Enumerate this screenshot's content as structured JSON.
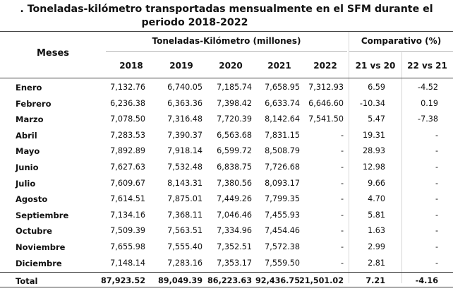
{
  "title": {
    "line1": ". Toneladas-kilómetro transportadas mensualmente en el SFM durante el",
    "line2": "periodo 2018-2022"
  },
  "headers": {
    "months": "Meses",
    "group_main": "Toneladas-Kilómetro (millones)",
    "group_cmp": "Comparativo (%)",
    "years": [
      "2018",
      "2019",
      "2020",
      "2021",
      "2022"
    ],
    "cmp": [
      "21 vs 20",
      "22 vs 21"
    ]
  },
  "rows": [
    {
      "month": "Enero",
      "values": [
        "7,132.76",
        "6,740.05",
        "7,185.74",
        "7,658.95",
        "7,312.93"
      ],
      "cmp": [
        "6.59",
        "-4.52"
      ]
    },
    {
      "month": "Febrero",
      "values": [
        "6,236.38",
        "6,363.36",
        "7,398.42",
        "6,633.74",
        "6,646.60"
      ],
      "cmp": [
        "-10.34",
        "0.19"
      ]
    },
    {
      "month": "Marzo",
      "values": [
        "7,078.50",
        "7,316.48",
        "7,720.39",
        "8,142.64",
        "7,541.50"
      ],
      "cmp": [
        "5.47",
        "-7.38"
      ]
    },
    {
      "month": "Abril",
      "values": [
        "7,283.53",
        "7,390.37",
        "6,563.68",
        "7,831.15",
        "-"
      ],
      "cmp": [
        "19.31",
        "-"
      ]
    },
    {
      "month": "Mayo",
      "values": [
        "7,892.89",
        "7,918.14",
        "6,599.72",
        "8,508.79",
        "-"
      ],
      "cmp": [
        "28.93",
        "-"
      ]
    },
    {
      "month": "Junio",
      "values": [
        "7,627.63",
        "7,532.48",
        "6,838.75",
        "7,726.68",
        "-"
      ],
      "cmp": [
        "12.98",
        "-"
      ]
    },
    {
      "month": "Julio",
      "values": [
        "7,609.67",
        "8,143.31",
        "7,380.56",
        "8,093.17",
        "-"
      ],
      "cmp": [
        "9.66",
        "-"
      ]
    },
    {
      "month": "Agosto",
      "values": [
        "7,614.51",
        "7,875.01",
        "7,449.26",
        "7,799.35",
        "-"
      ],
      "cmp": [
        "4.70",
        "-"
      ]
    },
    {
      "month": "Septiembre",
      "values": [
        "7,134.16",
        "7,368.11",
        "7,046.46",
        "7,455.93",
        "-"
      ],
      "cmp": [
        "5.81",
        "-"
      ]
    },
    {
      "month": "Octubre",
      "values": [
        "7,509.39",
        "7,563.51",
        "7,334.96",
        "7,454.46",
        "-"
      ],
      "cmp": [
        "1.63",
        "-"
      ]
    },
    {
      "month": "Noviembre",
      "values": [
        "7,655.98",
        "7,555.40",
        "7,352.51",
        "7,572.38",
        "-"
      ],
      "cmp": [
        "2.99",
        "-"
      ]
    },
    {
      "month": "Diciembre",
      "values": [
        "7,148.14",
        "7,283.16",
        "7,353.17",
        "7,559.50",
        "-"
      ],
      "cmp": [
        "2.81",
        "-"
      ]
    }
  ],
  "total": {
    "month": "Total",
    "values": [
      "87,923.52",
      "89,049.39",
      "86,223.63",
      "92,436.75",
      "21,501.02"
    ],
    "cmp": [
      "7.21",
      "-4.16"
    ]
  }
}
